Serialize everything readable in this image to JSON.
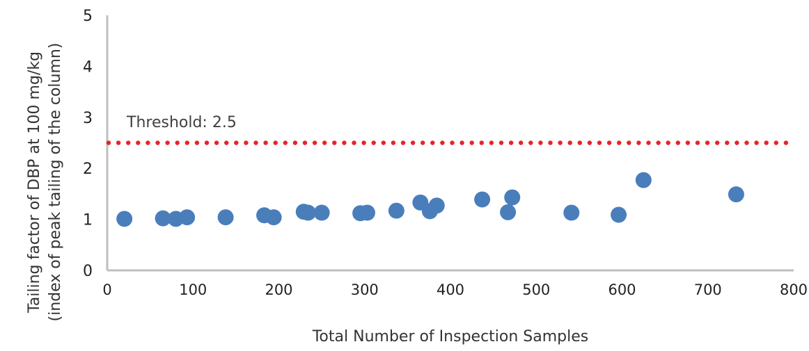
{
  "chart_data": {
    "type": "scatter",
    "title": "",
    "xlabel": "Total Number of Inspection Samples",
    "ylabel_line1": "Tailing factor of DBP at 100 mg/kg",
    "ylabel_line2": "(index of peak tailing of the column)",
    "xlim": [
      0,
      800
    ],
    "ylim": [
      0,
      5
    ],
    "xticks": [
      0,
      100,
      200,
      300,
      400,
      500,
      600,
      700,
      800
    ],
    "yticks": [
      0,
      1,
      2,
      3,
      4,
      5
    ],
    "grid": false,
    "threshold": {
      "value": 2.5,
      "label": "Threshold: 2.5",
      "color": "#e8232a",
      "style": "dotted"
    },
    "series": [
      {
        "name": "Tailing factor",
        "color": "#4a7ebb",
        "points": [
          [
            20,
            1.01
          ],
          [
            65,
            1.02
          ],
          [
            80,
            1.01
          ],
          [
            93,
            1.04
          ],
          [
            138,
            1.04
          ],
          [
            183,
            1.08
          ],
          [
            194,
            1.04
          ],
          [
            229,
            1.15
          ],
          [
            234,
            1.13
          ],
          [
            250,
            1.13
          ],
          [
            295,
            1.12
          ],
          [
            303,
            1.13
          ],
          [
            337,
            1.17
          ],
          [
            365,
            1.33
          ],
          [
            376,
            1.16
          ],
          [
            384,
            1.27
          ],
          [
            437,
            1.39
          ],
          [
            467,
            1.14
          ],
          [
            472,
            1.43
          ],
          [
            541,
            1.13
          ],
          [
            596,
            1.09
          ],
          [
            625,
            1.77
          ],
          [
            733,
            1.49
          ]
        ]
      }
    ]
  }
}
